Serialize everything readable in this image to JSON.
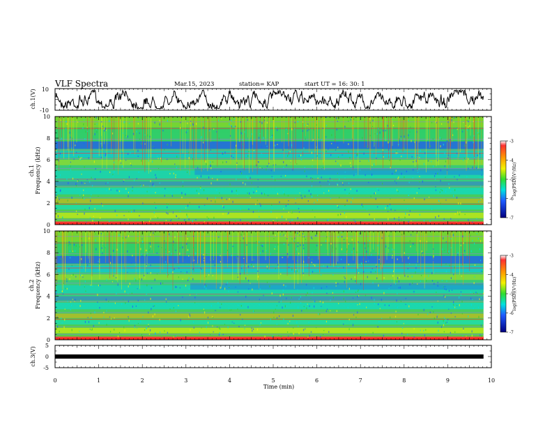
{
  "header": {
    "title": "VLF Spectra",
    "date": "Mar.15, 2023",
    "station": "station= KAP",
    "start_time": "start  UT  =   16: 30: 1"
  },
  "chart_data": [
    {
      "type": "line",
      "panel": "ch1-waveform",
      "ylabel": "ch.1(V)",
      "ylim": [
        -10,
        10
      ],
      "yticks": [
        "10",
        "-10"
      ],
      "xlim": [
        0,
        10
      ],
      "series_end_min": 9.82,
      "line_color": "#000000"
    },
    {
      "type": "heatmap",
      "panel": "ch1-spectrogram",
      "ylabel": "ch.1\nFrequency  (kHz)",
      "ylim": [
        0,
        10
      ],
      "yticks": [
        "0",
        "2",
        "4",
        "6",
        "8",
        "10"
      ],
      "xlim": [
        0,
        10
      ],
      "data_end_min": 9.82,
      "color_scale": {
        "label": "log(PSD)(V²/Hz)",
        "range": [
          -7,
          -3
        ],
        "ticks": [
          "-3",
          "-4",
          "-5",
          "-6",
          "-7"
        ]
      }
    },
    {
      "type": "heatmap",
      "panel": "ch2-spectrogram",
      "ylabel": "ch.2\nFrequency  (kHz)",
      "ylim": [
        0,
        10
      ],
      "yticks": [
        "0",
        "2",
        "4",
        "6",
        "8",
        "10"
      ],
      "xlim": [
        0,
        10
      ],
      "data_end_min": 9.82,
      "color_scale": {
        "label": "log(PSD)(V²/Hz)",
        "range": [
          -7,
          -3
        ],
        "ticks": [
          "-3",
          "-4",
          "-5",
          "-6",
          "-7"
        ]
      }
    },
    {
      "type": "line",
      "panel": "ch3-waveform",
      "ylabel": "ch.3(V)",
      "ylim": [
        -5,
        5
      ],
      "yticks": [
        "5",
        "0",
        "-5"
      ],
      "xlim": [
        0,
        10
      ],
      "series_end_min": 9.82,
      "line_color": "#000000",
      "xlabel": "Time  (min)",
      "xticks": [
        "0",
        "1",
        "2",
        "3",
        "4",
        "5",
        "6",
        "7",
        "8",
        "9",
        "10"
      ]
    }
  ]
}
